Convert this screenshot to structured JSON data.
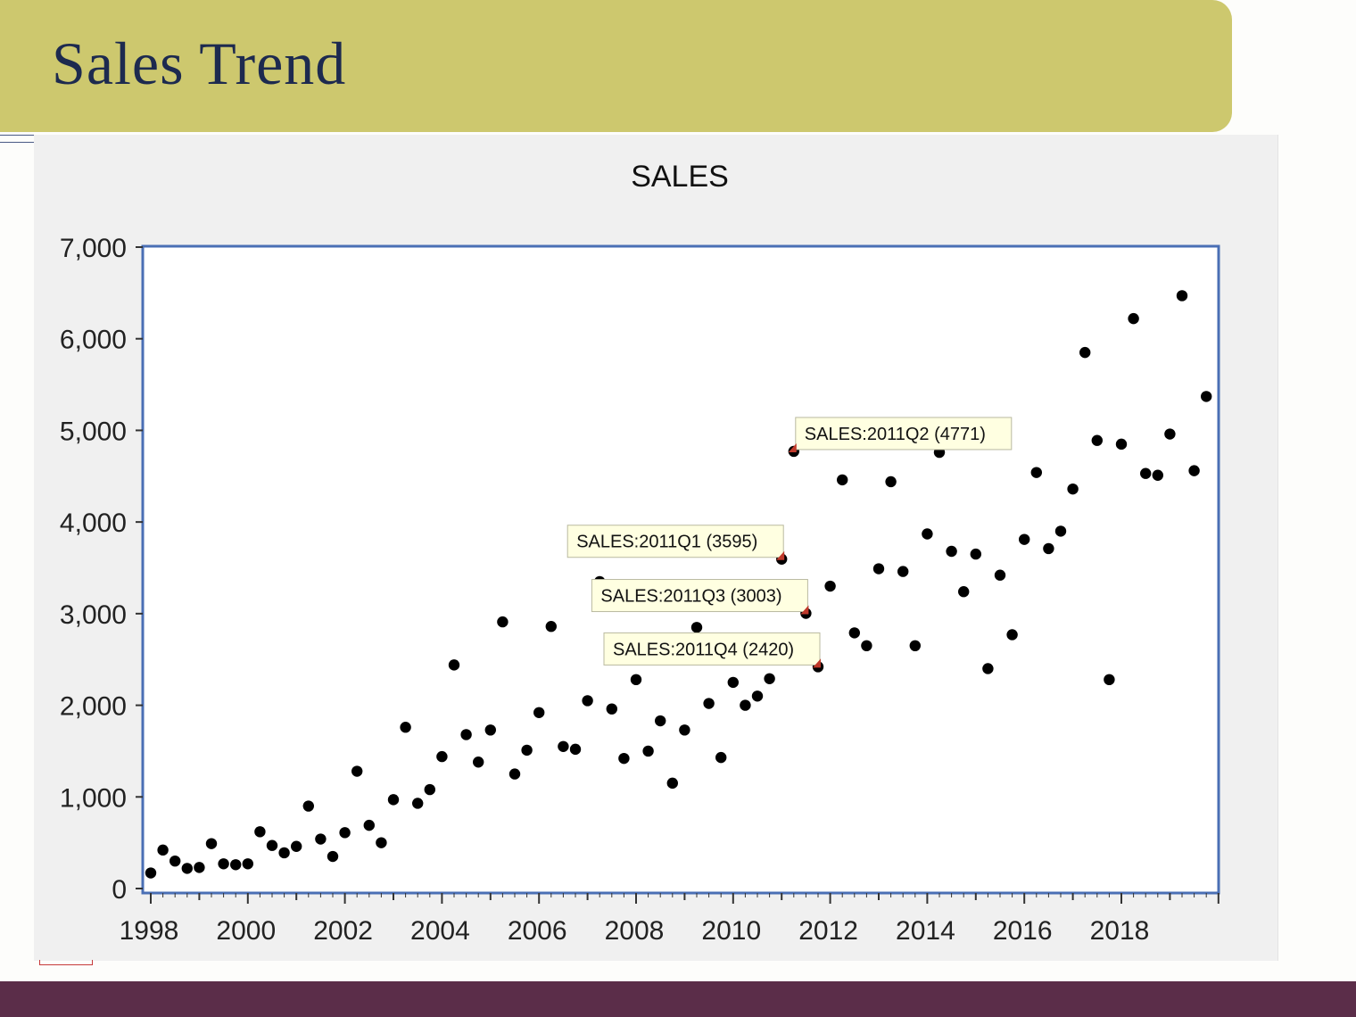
{
  "slide": {
    "title": "Sales Trend"
  },
  "colors": {
    "banner": "#cdc86e",
    "title_text": "#1d2a4f",
    "plot_border": "#4a6fb5",
    "marker": "#000000",
    "tooltip_bg": "#ffffe1",
    "tooltip_pointer": "#c0392b",
    "bottom_band": "#5b2d49"
  },
  "chart_data": {
    "type": "scatter",
    "title": "SALES",
    "xlabel": "",
    "ylabel": "",
    "frequency": "quarterly",
    "xlim": [
      "1998Q1",
      "2019Q4"
    ],
    "ylim": [
      0,
      7000
    ],
    "yticks": [
      0,
      1000,
      2000,
      3000,
      4000,
      5000,
      6000,
      7000
    ],
    "ytick_labels": [
      "0",
      "1,000",
      "2,000",
      "3,000",
      "4,000",
      "5,000",
      "6,000",
      "7,000"
    ],
    "xtick_labels": [
      "1998",
      "2000",
      "2002",
      "2004",
      "2006",
      "2008",
      "2010",
      "2012",
      "2014",
      "2016",
      "2018"
    ],
    "grid": false,
    "series": [
      {
        "values": [
          170,
          420,
          300,
          220,
          230,
          490,
          270,
          260,
          270,
          620,
          470,
          390,
          460,
          900,
          540,
          350,
          610,
          1280,
          690,
          500,
          970,
          1760,
          930,
          1080,
          1440,
          2440,
          1680,
          1380,
          1730,
          2910,
          1250,
          1510,
          1920,
          2860,
          1550,
          1520,
          2050,
          3350,
          1960,
          1420,
          2280,
          1500,
          1830,
          1150,
          1730,
          2850,
          2020,
          1430,
          2250,
          2000,
          2100,
          2290,
          3595,
          4771,
          3003,
          2420,
          3300,
          4460,
          2790,
          2650,
          3490,
          4440,
          3460,
          2650,
          3870,
          4760,
          3680,
          3240,
          3650,
          2400,
          3420,
          2770,
          3810,
          4540,
          3710,
          3900,
          4360,
          5850,
          4890,
          2280,
          4850,
          6220,
          4530,
          4510,
          4960,
          6470,
          4560,
          5370
        ]
      }
    ],
    "annotations": [
      {
        "label": "SALES:2011Q2  (4771)",
        "period": "2011Q2",
        "value": 4771
      },
      {
        "label": "SALES:2011Q1  (3595)",
        "period": "2011Q1",
        "value": 3595
      },
      {
        "label": "SALES:2011Q3  (3003)",
        "period": "2011Q3",
        "value": 3003
      },
      {
        "label": "SALES:2011Q4  (2420)",
        "period": "2011Q4",
        "value": 2420
      }
    ]
  }
}
